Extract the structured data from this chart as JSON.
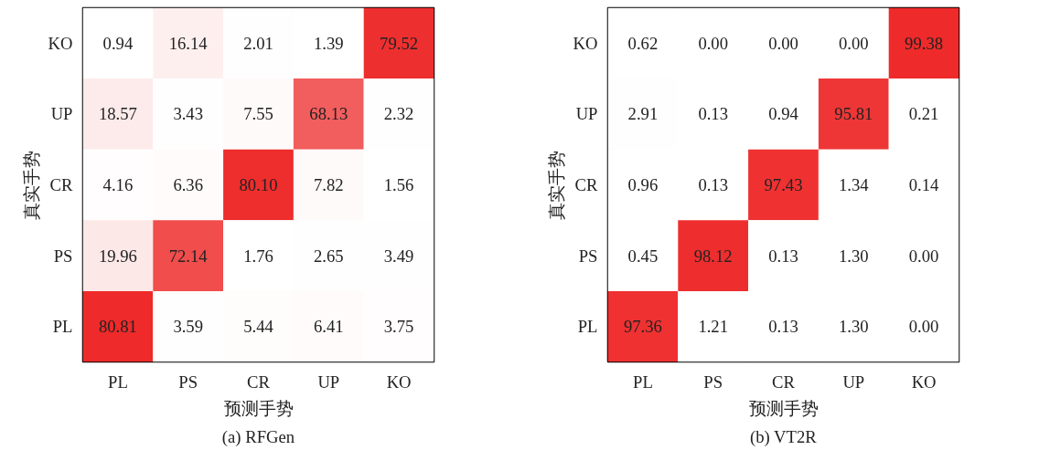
{
  "chart_data": [
    {
      "type": "heatmap",
      "title": "(a) RFGen",
      "xlabel": "预测手势",
      "ylabel": "真实手势",
      "color": "#ee2a2a",
      "categories": [
        "PL",
        "PS",
        "CR",
        "UP",
        "KO"
      ],
      "y_categories": [
        "KO",
        "UP",
        "CR",
        "PS",
        "PL"
      ],
      "cells": [
        [
          0.94,
          16.14,
          2.01,
          1.39,
          79.52
        ],
        [
          18.57,
          3.43,
          7.55,
          68.13,
          2.32
        ],
        [
          4.16,
          6.36,
          80.1,
          7.82,
          1.56
        ],
        [
          19.96,
          72.14,
          1.76,
          2.65,
          3.49
        ],
        [
          80.81,
          3.59,
          5.44,
          6.41,
          3.75
        ]
      ],
      "cell_labels": [
        [
          "0.94",
          "16.14",
          "2.01",
          "1.39",
          "79.52"
        ],
        [
          "18.57",
          "3.43",
          "7.55",
          "68.13",
          "2.32"
        ],
        [
          "4.16",
          "6.36",
          "80.10",
          "7.82",
          "1.56"
        ],
        [
          "19.96",
          "72.14",
          "1.76",
          "2.65",
          "3.49"
        ],
        [
          "80.81",
          "3.59",
          "5.44",
          "6.41",
          "3.75"
        ]
      ]
    },
    {
      "type": "heatmap",
      "title": "(b) VT2R",
      "xlabel": "预测手势",
      "ylabel": "真实手势",
      "color": "#ee2a2a",
      "categories": [
        "PL",
        "PS",
        "CR",
        "UP",
        "KO"
      ],
      "y_categories": [
        "KO",
        "UP",
        "CR",
        "PS",
        "PL"
      ],
      "cells": [
        [
          0.62,
          0.0,
          0.0,
          0.0,
          99.38
        ],
        [
          2.91,
          0.13,
          0.94,
          95.81,
          0.21
        ],
        [
          0.96,
          0.13,
          97.43,
          1.34,
          0.14
        ],
        [
          0.45,
          98.12,
          0.13,
          1.3,
          0.0
        ],
        [
          97.36,
          1.21,
          0.13,
          1.3,
          0.0
        ]
      ],
      "cell_labels": [
        [
          "0.62",
          "0.00",
          "0.00",
          "0.00",
          "99.38"
        ],
        [
          "2.91",
          "0.13",
          "0.94",
          "95.81",
          "0.21"
        ],
        [
          "0.96",
          "0.13",
          "97.43",
          "1.34",
          "0.14"
        ],
        [
          "0.45",
          "98.12",
          "0.13",
          "1.30",
          "0.00"
        ],
        [
          "97.36",
          "1.21",
          "0.13",
          "1.30",
          "0.00"
        ]
      ]
    }
  ]
}
